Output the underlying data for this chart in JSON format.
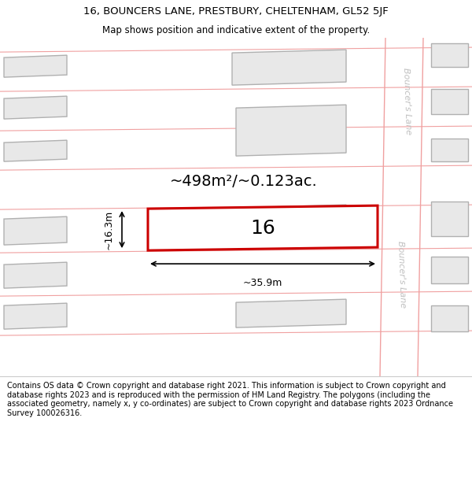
{
  "title_line1": "16, BOUNCERS LANE, PRESTBURY, CHELTENHAM, GL52 5JF",
  "title_line2": "Map shows position and indicative extent of the property.",
  "footer_text": "Contains OS data © Crown copyright and database right 2021. This information is subject to Crown copyright and database rights 2023 and is reproduced with the permission of HM Land Registry. The polygons (including the associated geometry, namely x, y co-ordinates) are subject to Crown copyright and database rights 2023 Ordnance Survey 100026316.",
  "highlighted_border": "#cc0000",
  "faint_border": "#f0a0a0",
  "road_label_upper": "Bouncer's Lane",
  "road_label_lower": "Bouncer's Lane",
  "area_label": "~498m²/~0.123ac.",
  "plot_number": "16",
  "dim_width": "~35.9m",
  "dim_height": "~16.3m",
  "map_bg": "#ffffff",
  "plot_bg": "#e8e8e8",
  "road_bg": "#ffffff",
  "road_stripe_color": "#f0a0a0",
  "dim_line_color": "#000000",
  "text_color": "#000000",
  "road_label_color": "#c0c0c0",
  "title_fontsize": 9.5,
  "subtitle_fontsize": 8.5,
  "footer_fontsize": 7.0,
  "area_fontsize": 14,
  "number_fontsize": 18,
  "dim_fontsize": 9,
  "road_fontsize": 8
}
